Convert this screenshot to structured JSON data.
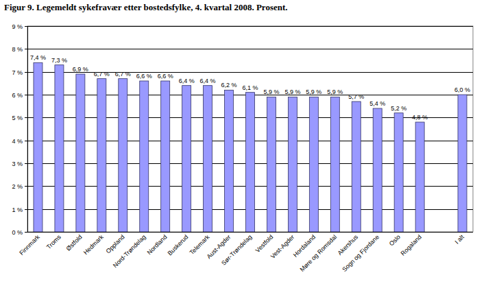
{
  "chart_data": {
    "type": "bar",
    "title": "Figur 9. Legemeldt sykefravær etter bostedsfylke, 4. kvartal 2008. Prosent.",
    "categories": [
      "Finnmark",
      "Troms",
      "Østfold",
      "Hedmark",
      "Oppland",
      "Nord-Trøndelag",
      "Nordland",
      "Buskerud",
      "Telemark",
      "Aust-Agder",
      "Sør-Trøndelag",
      "Vestfold",
      "Vest-Agder",
      "Hordaland",
      "Møre og Romsdal",
      "Akershus",
      "Sogn og Fjordane",
      "Oslo",
      "Rogaland",
      null,
      "I alt"
    ],
    "values": [
      7.4,
      7.3,
      6.9,
      6.7,
      6.7,
      6.6,
      6.6,
      6.4,
      6.4,
      6.2,
      6.1,
      5.9,
      5.9,
      5.9,
      5.9,
      5.7,
      5.4,
      5.2,
      4.8,
      null,
      6.0
    ],
    "value_labels": [
      "7,4 %",
      "7,3 %",
      "6,9 %",
      "6,7 %",
      "6,7 %",
      "6,6 %",
      "6,6 %",
      "6,4 %",
      "6,4 %",
      "6,2 %",
      "6,1 %",
      "5,9 %",
      "5,9 %",
      "5,9 %",
      "5,9 %",
      "5,7 %",
      "5,4 %",
      "5,2 %",
      "4,8 %",
      null,
      "6,0 %"
    ],
    "color": "#9999ff",
    "ylim": [
      0,
      9
    ],
    "yticks": [
      {
        "value": 0,
        "label": "0 %"
      },
      {
        "value": 1,
        "label": "1 %"
      },
      {
        "value": 2,
        "label": "2 %"
      },
      {
        "value": 3,
        "label": "3 %"
      },
      {
        "value": 4,
        "label": "4 %"
      },
      {
        "value": 5,
        "label": "5 %"
      },
      {
        "value": 6,
        "label": "6 %"
      },
      {
        "value": 7,
        "label": "7 %"
      },
      {
        "value": 8,
        "label": "8 %"
      },
      {
        "value": 9,
        "label": "9 %"
      }
    ],
    "grid": true,
    "data_labels": true
  }
}
